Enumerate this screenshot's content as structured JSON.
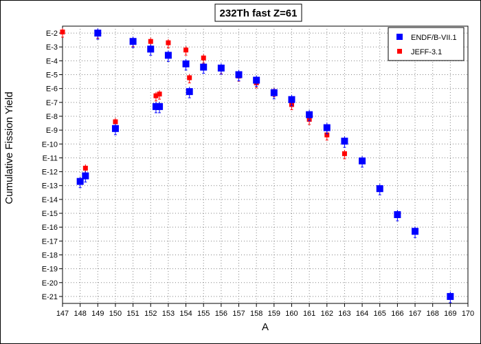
{
  "chart_data": {
    "type": "scatter",
    "title": "232Th fast Z=61",
    "xlabel": "A",
    "ylabel": "Cumulative Fission Yield",
    "xlim": [
      147,
      170
    ],
    "ylim_log10": [
      -21.5,
      -1.5
    ],
    "y_scale": "log",
    "x_ticks": [
      147,
      148,
      149,
      150,
      151,
      152,
      153,
      154,
      155,
      156,
      157,
      158,
      159,
      160,
      161,
      162,
      163,
      164,
      165,
      166,
      167,
      168,
      169,
      170
    ],
    "y_ticks": [
      "E-2",
      "E-3",
      "E-4",
      "E-5",
      "E-6",
      "E-7",
      "E-8",
      "E-9",
      "E-10",
      "E-11",
      "E-12",
      "E-13",
      "E-14",
      "E-15",
      "E-16",
      "E-17",
      "E-18",
      "E-19",
      "E-20",
      "E-21"
    ],
    "grid": true,
    "legend_position": "top-right",
    "series": [
      {
        "name": "ENDF/B-VII.1",
        "color": "#0000ff",
        "marker": "square-large",
        "x": [
          148,
          148.3,
          149,
          150,
          151,
          152,
          152.3,
          152.5,
          153,
          154,
          154.2,
          155,
          156,
          157,
          158,
          159,
          160,
          161,
          162,
          163,
          164,
          165,
          166,
          167,
          169
        ],
        "y": [
          2e-13,
          5e-13,
          0.01,
          1.3e-09,
          0.0025,
          0.0007,
          5e-08,
          5e-08,
          0.00025,
          6e-05,
          6e-07,
          3.5e-05,
          3e-05,
          1e-05,
          4e-06,
          5e-07,
          1.6e-07,
          1.3e-08,
          1.5e-09,
          1.6e-10,
          6e-12,
          6e-14,
          8e-16,
          5e-17,
          1e-21
        ]
      },
      {
        "name": "JEFF-3.1",
        "color": "#ff0000",
        "marker": "square-small",
        "x": [
          147,
          148.3,
          149,
          150,
          151,
          152,
          152.3,
          152.5,
          153,
          154,
          154.2,
          155,
          156,
          157,
          158,
          159,
          160,
          161,
          162,
          163
        ],
        "y": [
          0.012,
          1.8e-12,
          0.01,
          4e-09,
          0.0025,
          0.0025,
          3e-07,
          4e-07,
          0.002,
          0.0006,
          6e-06,
          0.00016,
          2.7e-05,
          8e-06,
          2.6e-06,
          6e-07,
          7e-08,
          6e-09,
          4.5e-10,
          2e-11
        ]
      }
    ]
  }
}
